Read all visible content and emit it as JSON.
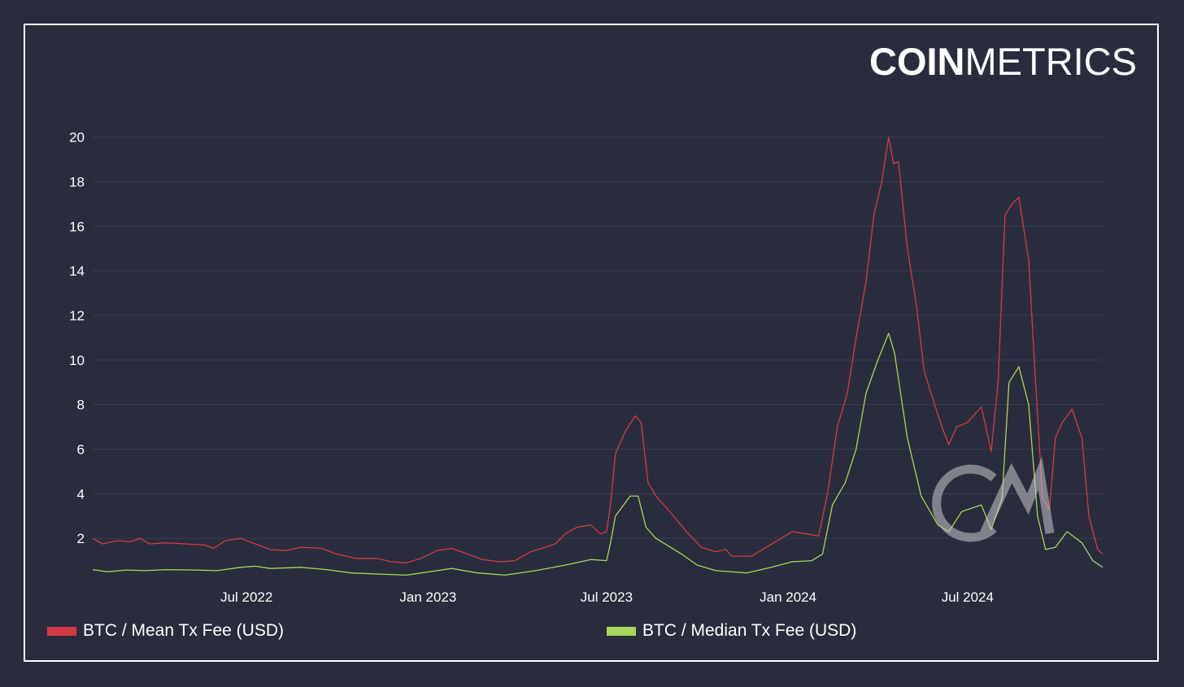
{
  "brand": {
    "logo_bold": "COIN",
    "logo_light": "METRICS",
    "watermark": "CM"
  },
  "colors": {
    "background": "#292c3c",
    "mean": "#d33a47",
    "median": "#a8d65b",
    "grid": "#3a3e50"
  },
  "chart_data": {
    "type": "line",
    "title": "",
    "xlabel": "",
    "ylabel": "",
    "x_ticks": [
      "Jul 2022",
      "Jan 2023",
      "Jul 2023",
      "Jan 2024",
      "Jul 2024"
    ],
    "y_ticks": [
      2,
      4,
      6,
      8,
      10,
      12,
      14,
      16,
      18,
      20
    ],
    "xlim": [
      "2022-01-26",
      "2024-11-15"
    ],
    "ylim": [
      0,
      20.5
    ],
    "grid": true,
    "legend_position": "bottom",
    "series": [
      {
        "name": "BTC / Mean Tx Fee (USD)",
        "color": "#d33a47",
        "points": [
          [
            "2022-01-26",
            2.0
          ],
          [
            "2022-02-05",
            1.75
          ],
          [
            "2022-02-20",
            1.9
          ],
          [
            "2022-03-05",
            1.85
          ],
          [
            "2022-03-15",
            2.0
          ],
          [
            "2022-03-25",
            1.75
          ],
          [
            "2022-04-10",
            1.8
          ],
          [
            "2022-05-01",
            1.75
          ],
          [
            "2022-05-20",
            1.7
          ],
          [
            "2022-05-28",
            1.55
          ],
          [
            "2022-06-10",
            1.9
          ],
          [
            "2022-06-25",
            2.0
          ],
          [
            "2022-07-10",
            1.75
          ],
          [
            "2022-07-25",
            1.5
          ],
          [
            "2022-08-10",
            1.45
          ],
          [
            "2022-08-25",
            1.6
          ],
          [
            "2022-09-15",
            1.55
          ],
          [
            "2022-09-30",
            1.3
          ],
          [
            "2022-10-20",
            1.1
          ],
          [
            "2022-11-10",
            1.1
          ],
          [
            "2022-11-25",
            0.95
          ],
          [
            "2022-12-10",
            0.9
          ],
          [
            "2022-12-25",
            1.1
          ],
          [
            "2023-01-10",
            1.45
          ],
          [
            "2023-01-25",
            1.55
          ],
          [
            "2023-02-10",
            1.3
          ],
          [
            "2023-02-25",
            1.05
          ],
          [
            "2023-03-15",
            0.95
          ],
          [
            "2023-03-30",
            1.0
          ],
          [
            "2023-04-15",
            1.4
          ],
          [
            "2023-04-30",
            1.6
          ],
          [
            "2023-05-10",
            1.75
          ],
          [
            "2023-05-20",
            2.2
          ],
          [
            "2023-06-01",
            2.5
          ],
          [
            "2023-06-15",
            2.6
          ],
          [
            "2023-06-25",
            2.2
          ],
          [
            "2023-07-01",
            2.3
          ],
          [
            "2023-07-05",
            3.5
          ],
          [
            "2023-07-10",
            5.8
          ],
          [
            "2023-07-20",
            6.8
          ],
          [
            "2023-07-30",
            7.5
          ],
          [
            "2023-08-05",
            7.2
          ],
          [
            "2023-08-12",
            4.5
          ],
          [
            "2023-08-20",
            3.9
          ],
          [
            "2023-09-05",
            3.1
          ],
          [
            "2023-09-20",
            2.3
          ],
          [
            "2023-10-05",
            1.6
          ],
          [
            "2023-10-20",
            1.4
          ],
          [
            "2023-10-30",
            1.5
          ],
          [
            "2023-11-05",
            1.2
          ],
          [
            "2023-11-25",
            1.2
          ],
          [
            "2023-12-10",
            1.6
          ],
          [
            "2023-12-25",
            2.0
          ],
          [
            "2024-01-05",
            2.3
          ],
          [
            "2024-01-20",
            2.2
          ],
          [
            "2024-02-01",
            2.1
          ],
          [
            "2024-02-10",
            4.0
          ],
          [
            "2024-02-20",
            7.0
          ],
          [
            "2024-03-01",
            8.5
          ],
          [
            "2024-03-10",
            11.0
          ],
          [
            "2024-03-20",
            13.5
          ],
          [
            "2024-03-28",
            16.5
          ],
          [
            "2024-04-05",
            18.0
          ],
          [
            "2024-04-12",
            20.0
          ],
          [
            "2024-04-17",
            18.8
          ],
          [
            "2024-04-22",
            18.9
          ],
          [
            "2024-05-01",
            15.0
          ],
          [
            "2024-05-10",
            12.5
          ],
          [
            "2024-05-18",
            9.5
          ],
          [
            "2024-05-25",
            8.5
          ],
          [
            "2024-06-05",
            7.0
          ],
          [
            "2024-06-12",
            6.2
          ],
          [
            "2024-06-20",
            7.0
          ],
          [
            "2024-07-01",
            7.2
          ],
          [
            "2024-07-15",
            7.9
          ],
          [
            "2024-07-25",
            5.9
          ],
          [
            "2024-08-01",
            9.0
          ],
          [
            "2024-08-08",
            16.5
          ],
          [
            "2024-08-15",
            17.0
          ],
          [
            "2024-08-22",
            17.3
          ],
          [
            "2024-09-01",
            14.5
          ],
          [
            "2024-09-08",
            9.0
          ],
          [
            "2024-09-15",
            3.8
          ],
          [
            "2024-09-22",
            3.3
          ],
          [
            "2024-09-28",
            6.5
          ],
          [
            "2024-10-05",
            7.2
          ],
          [
            "2024-10-15",
            7.8
          ],
          [
            "2024-10-25",
            6.5
          ],
          [
            "2024-11-01",
            3.0
          ],
          [
            "2024-11-10",
            1.5
          ],
          [
            "2024-11-15",
            1.3
          ]
        ]
      },
      {
        "name": "BTC / Median Tx Fee (USD)",
        "color": "#a8d65b",
        "points": [
          [
            "2022-01-26",
            0.6
          ],
          [
            "2022-02-10",
            0.5
          ],
          [
            "2022-03-01",
            0.58
          ],
          [
            "2022-03-20",
            0.55
          ],
          [
            "2022-04-10",
            0.6
          ],
          [
            "2022-05-10",
            0.58
          ],
          [
            "2022-06-01",
            0.55
          ],
          [
            "2022-06-25",
            0.7
          ],
          [
            "2022-07-10",
            0.75
          ],
          [
            "2022-07-25",
            0.65
          ],
          [
            "2022-08-25",
            0.7
          ],
          [
            "2022-09-20",
            0.6
          ],
          [
            "2022-10-15",
            0.45
          ],
          [
            "2022-11-10",
            0.4
          ],
          [
            "2022-12-10",
            0.35
          ],
          [
            "2023-01-10",
            0.55
          ],
          [
            "2023-01-25",
            0.65
          ],
          [
            "2023-02-20",
            0.45
          ],
          [
            "2023-03-20",
            0.35
          ],
          [
            "2023-04-20",
            0.55
          ],
          [
            "2023-05-20",
            0.8
          ],
          [
            "2023-06-15",
            1.05
          ],
          [
            "2023-07-01",
            1.0
          ],
          [
            "2023-07-05",
            1.8
          ],
          [
            "2023-07-10",
            3.0
          ],
          [
            "2023-07-25",
            3.9
          ],
          [
            "2023-08-02",
            3.9
          ],
          [
            "2023-08-10",
            2.5
          ],
          [
            "2023-08-20",
            2.0
          ],
          [
            "2023-09-15",
            1.3
          ],
          [
            "2023-10-01",
            0.8
          ],
          [
            "2023-10-20",
            0.55
          ],
          [
            "2023-11-20",
            0.45
          ],
          [
            "2023-12-15",
            0.7
          ],
          [
            "2024-01-05",
            0.95
          ],
          [
            "2024-01-25",
            1.0
          ],
          [
            "2024-02-05",
            1.3
          ],
          [
            "2024-02-15",
            3.5
          ],
          [
            "2024-02-28",
            4.5
          ],
          [
            "2024-03-10",
            6.0
          ],
          [
            "2024-03-20",
            8.5
          ],
          [
            "2024-04-01",
            10.0
          ],
          [
            "2024-04-12",
            11.2
          ],
          [
            "2024-04-18",
            10.3
          ],
          [
            "2024-05-01",
            6.5
          ],
          [
            "2024-05-15",
            3.9
          ],
          [
            "2024-06-01",
            2.6
          ],
          [
            "2024-06-12",
            2.3
          ],
          [
            "2024-06-25",
            3.2
          ],
          [
            "2024-07-15",
            3.5
          ],
          [
            "2024-07-25",
            2.4
          ],
          [
            "2024-08-05",
            3.8
          ],
          [
            "2024-08-12",
            9.0
          ],
          [
            "2024-08-22",
            9.7
          ],
          [
            "2024-09-01",
            8.0
          ],
          [
            "2024-09-10",
            3.0
          ],
          [
            "2024-09-18",
            1.5
          ],
          [
            "2024-09-28",
            1.6
          ],
          [
            "2024-10-10",
            2.3
          ],
          [
            "2024-10-25",
            1.8
          ],
          [
            "2024-11-05",
            1.0
          ],
          [
            "2024-11-15",
            0.7
          ]
        ]
      }
    ]
  }
}
